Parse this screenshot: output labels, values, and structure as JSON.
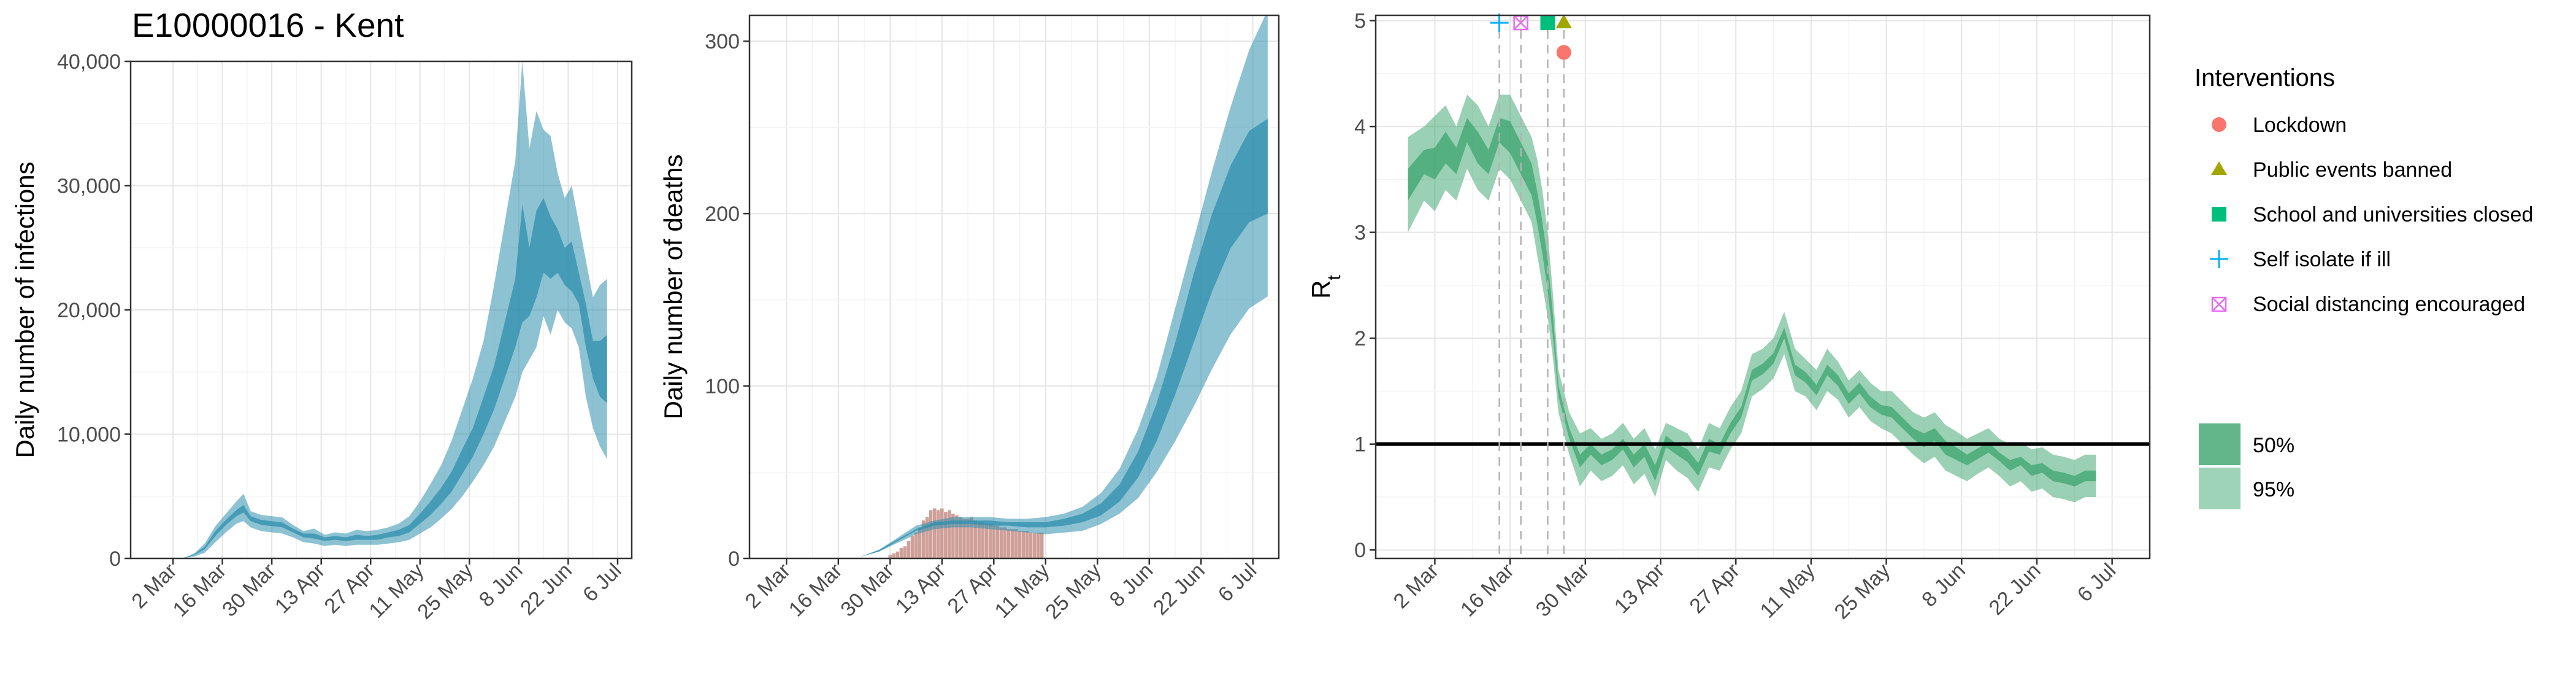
{
  "colors": {
    "infections": "#2f8fae",
    "deaths": "#2f8fae",
    "deaths_bars": "#c78f87",
    "rt": "#36a269",
    "lockdown": "#f8766d",
    "public_events": "#a3a500",
    "schools": "#00bf7d",
    "self_isolate": "#00b0f6",
    "social_distancing": "#e76bf3"
  },
  "figure": {
    "title": "E10000016 - Kent"
  },
  "chart_data": [
    {
      "id": "infections",
      "type": "area",
      "title": "E10000016 - Kent",
      "xlabel": "",
      "ylabel": "Daily number of infections",
      "x_ticks": [
        "2 Mar",
        "16 Mar",
        "30 Mar",
        "13 Apr",
        "27 Apr",
        "11 May",
        "25 May",
        "8 Jun",
        "22 Jun",
        "6 Jul"
      ],
      "x_tick_days": [
        0,
        14,
        28,
        42,
        56,
        70,
        84,
        98,
        112,
        126
      ],
      "x_range": [
        -12,
        130
      ],
      "y_ticks": [
        0,
        10000,
        20000,
        30000,
        40000
      ],
      "y_tick_labels": [
        "0",
        "10,000",
        "20,000",
        "30,000",
        "40,000"
      ],
      "ylim": [
        0,
        40000
      ],
      "grid": true,
      "x_days": [
        0,
        3,
        6,
        9,
        12,
        15,
        18,
        20,
        22,
        25,
        28,
        31,
        34,
        37,
        40,
        43,
        46,
        49,
        52,
        55,
        58,
        61,
        64,
        67,
        70,
        73,
        76,
        79,
        82,
        85,
        88,
        91,
        94,
        97,
        99,
        101,
        103,
        105,
        107,
        109,
        111,
        113,
        115,
        117,
        119,
        121,
        123
      ],
      "series": [
        {
          "name": "95% interval",
          "lower": [
            0,
            20,
            150,
            450,
            1300,
            2100,
            2800,
            3000,
            2500,
            2200,
            2100,
            2000,
            1700,
            1300,
            1200,
            1000,
            1100,
            1000,
            1100,
            1100,
            1100,
            1200,
            1300,
            1500,
            2000,
            2500,
            3200,
            4000,
            5000,
            6200,
            7500,
            9000,
            11000,
            13000,
            15000,
            16000,
            17000,
            19500,
            18000,
            20000,
            19000,
            18500,
            17000,
            13000,
            10500,
            9000,
            8000
          ],
          "upper": [
            0,
            50,
            400,
            1200,
            2600,
            3600,
            4600,
            5200,
            3800,
            3500,
            3400,
            3300,
            2700,
            2200,
            2400,
            1900,
            2100,
            2000,
            2300,
            2200,
            2300,
            2500,
            2800,
            3400,
            4600,
            6000,
            7500,
            9500,
            12000,
            14500,
            17500,
            22000,
            27000,
            32000,
            40000,
            33000,
            36000,
            34500,
            34000,
            31000,
            29000,
            30000,
            27000,
            24000,
            21000,
            22000,
            22500
          ]
        },
        {
          "name": "50% interval",
          "lower": [
            0,
            30,
            250,
            750,
            1800,
            2700,
            3400,
            3700,
            3000,
            2700,
            2600,
            2500,
            2100,
            1700,
            1600,
            1400,
            1500,
            1400,
            1500,
            1500,
            1500,
            1700,
            1800,
            2100,
            2800,
            3500,
            4400,
            5400,
            6800,
            8200,
            10000,
            12000,
            14500,
            17000,
            19000,
            19500,
            21000,
            23000,
            22500,
            23000,
            22000,
            21500,
            20500,
            17000,
            14500,
            13000,
            12500
          ],
          "upper": [
            0,
            40,
            320,
            950,
            2200,
            3100,
            3900,
            4300,
            3400,
            3100,
            3000,
            2900,
            2400,
            2000,
            2000,
            1700,
            1800,
            1700,
            1900,
            1800,
            1900,
            2100,
            2300,
            2700,
            3600,
            4600,
            5700,
            7000,
            8800,
            10500,
            13000,
            15500,
            19000,
            22500,
            28500,
            25000,
            28000,
            29000,
            27500,
            26500,
            25000,
            25500,
            23000,
            20500,
            17500,
            17500,
            18000
          ]
        }
      ]
    },
    {
      "id": "deaths",
      "type": "area",
      "title": "",
      "xlabel": "",
      "ylabel": "Daily number of deaths",
      "x_ticks": [
        "2 Mar",
        "16 Mar",
        "30 Mar",
        "13 Apr",
        "27 Apr",
        "11 May",
        "25 May",
        "8 Jun",
        "22 Jun",
        "6 Jul"
      ],
      "x_tick_days": [
        0,
        14,
        28,
        42,
        56,
        70,
        84,
        98,
        112,
        126
      ],
      "x_range": [
        -10,
        133
      ],
      "y_ticks": [
        0,
        100,
        200,
        300
      ],
      "y_tick_labels": [
        "0",
        "100",
        "200",
        "300"
      ],
      "ylim": [
        0,
        315
      ],
      "grid": true,
      "x_days": [
        14,
        20,
        25,
        30,
        35,
        40,
        45,
        50,
        55,
        60,
        65,
        70,
        75,
        80,
        85,
        90,
        95,
        100,
        105,
        110,
        115,
        120,
        125,
        130
      ],
      "series": [
        {
          "name": "95% interval",
          "lower": [
            0,
            1,
            4,
            9,
            14,
            17,
            18,
            18,
            17,
            16,
            15,
            14,
            15,
            16,
            20,
            26,
            35,
            50,
            68,
            88,
            110,
            130,
            145,
            152
          ],
          "upper": [
            0,
            1,
            5,
            12,
            19,
            22,
            24,
            24,
            24,
            23,
            23,
            24,
            26,
            30,
            38,
            52,
            75,
            105,
            145,
            185,
            225,
            262,
            295,
            318
          ]
        },
        {
          "name": "50% interval",
          "lower": [
            0,
            1,
            4,
            10,
            16,
            19,
            20,
            20,
            19,
            19,
            18,
            18,
            19,
            21,
            25,
            33,
            47,
            68,
            95,
            125,
            155,
            180,
            195,
            200
          ],
          "upper": [
            0,
            1,
            5,
            11,
            17,
            21,
            22,
            22,
            22,
            21,
            21,
            21,
            23,
            26,
            32,
            43,
            62,
            90,
            125,
            165,
            200,
            228,
            248,
            255
          ]
        }
      ],
      "observed_days": [
        28,
        29,
        30,
        31,
        32,
        33,
        34,
        35,
        36,
        37,
        38,
        39,
        40,
        41,
        42,
        43,
        44,
        45,
        46,
        47,
        48,
        49,
        50,
        51,
        52,
        53,
        54,
        55,
        56,
        57,
        58,
        59,
        60,
        61,
        62,
        63,
        64,
        65,
        66,
        67,
        68,
        69
      ],
      "observed_deaths": [
        2,
        3,
        4,
        6,
        7,
        10,
        13,
        15,
        18,
        22,
        24,
        28,
        29,
        28,
        29,
        27,
        28,
        26,
        25,
        24,
        23,
        23,
        24,
        22,
        21,
        21,
        20,
        20,
        19,
        19,
        18,
        18,
        17,
        17,
        17,
        16,
        16,
        16,
        15,
        15,
        15,
        15
      ]
    },
    {
      "id": "rt",
      "type": "area",
      "title": "",
      "xlabel": "",
      "ylabel": "R",
      "ylabel_subscript": "t",
      "x_ticks": [
        "2 Mar",
        "16 Mar",
        "30 Mar",
        "13 Apr",
        "27 Apr",
        "11 May",
        "25 May",
        "8 Jun",
        "22 Jun",
        "6 Jul"
      ],
      "x_tick_days": [
        0,
        14,
        28,
        42,
        56,
        70,
        84,
        98,
        112,
        126
      ],
      "x_range": [
        -11,
        133
      ],
      "y_ticks": [
        0,
        1,
        2,
        3,
        4,
        5
      ],
      "y_tick_labels": [
        "0",
        "1",
        "2",
        "3",
        "4",
        "5"
      ],
      "ylim": [
        -0.08,
        5.05
      ],
      "grid": true,
      "reference_line": 1,
      "x_days": [
        -5,
        -2,
        0,
        2,
        4,
        6,
        8,
        10,
        12,
        14,
        16,
        18,
        19,
        20,
        21,
        22,
        23,
        25,
        27,
        29,
        31,
        33,
        35,
        37,
        39,
        41,
        43,
        45,
        47,
        49,
        51,
        53,
        55,
        57,
        59,
        61,
        63,
        65,
        67,
        69,
        71,
        73,
        75,
        77,
        79,
        81,
        83,
        85,
        87,
        89,
        91,
        93,
        95,
        97,
        99,
        101,
        103,
        105,
        107,
        109,
        111,
        113,
        115,
        117,
        119,
        121,
        123
      ],
      "series": [
        {
          "name": "95%",
          "lower": [
            3.0,
            3.3,
            3.2,
            3.4,
            3.3,
            3.6,
            3.4,
            3.3,
            3.6,
            3.5,
            3.3,
            3.1,
            2.8,
            2.5,
            2.2,
            1.8,
            1.3,
            0.9,
            0.6,
            0.75,
            0.65,
            0.7,
            0.8,
            0.62,
            0.72,
            0.5,
            0.85,
            0.75,
            0.68,
            0.55,
            0.78,
            0.75,
            0.95,
            1.1,
            1.45,
            1.52,
            1.62,
            1.85,
            1.5,
            1.45,
            1.32,
            1.5,
            1.42,
            1.25,
            1.35,
            1.22,
            1.15,
            1.1,
            1.0,
            0.9,
            0.82,
            0.88,
            0.75,
            0.7,
            0.65,
            0.72,
            0.78,
            0.7,
            0.6,
            0.65,
            0.55,
            0.58,
            0.5,
            0.48,
            0.45,
            0.5,
            0.5
          ],
          "upper": [
            3.9,
            4.0,
            4.1,
            4.2,
            4.0,
            4.3,
            4.2,
            4.0,
            4.3,
            4.3,
            4.1,
            3.9,
            3.7,
            3.4,
            3.0,
            2.4,
            1.7,
            1.3,
            1.1,
            1.15,
            1.05,
            1.1,
            1.2,
            1.05,
            1.15,
            0.95,
            1.2,
            1.15,
            1.1,
            0.95,
            1.2,
            1.15,
            1.35,
            1.5,
            1.85,
            1.9,
            2.0,
            2.25,
            1.9,
            1.8,
            1.7,
            1.9,
            1.78,
            1.6,
            1.7,
            1.58,
            1.5,
            1.5,
            1.4,
            1.3,
            1.25,
            1.3,
            1.18,
            1.12,
            1.05,
            1.1,
            1.15,
            1.05,
            1.0,
            1.02,
            0.95,
            0.97,
            0.9,
            0.88,
            0.85,
            0.9,
            0.9
          ]
        },
        {
          "name": "50%",
          "lower": [
            3.3,
            3.55,
            3.5,
            3.65,
            3.55,
            3.85,
            3.65,
            3.55,
            3.85,
            3.75,
            3.55,
            3.35,
            3.1,
            2.8,
            2.45,
            2.0,
            1.45,
            1.05,
            0.78,
            0.9,
            0.8,
            0.85,
            0.95,
            0.78,
            0.88,
            0.65,
            0.97,
            0.9,
            0.83,
            0.7,
            0.93,
            0.9,
            1.1,
            1.25,
            1.6,
            1.66,
            1.76,
            2.0,
            1.65,
            1.58,
            1.46,
            1.65,
            1.55,
            1.38,
            1.48,
            1.35,
            1.28,
            1.25,
            1.15,
            1.05,
            0.97,
            1.03,
            0.9,
            0.85,
            0.8,
            0.86,
            0.92,
            0.84,
            0.75,
            0.8,
            0.7,
            0.73,
            0.65,
            0.63,
            0.6,
            0.65,
            0.65
          ],
          "upper": [
            3.6,
            3.78,
            3.8,
            3.95,
            3.8,
            4.08,
            3.95,
            3.78,
            4.08,
            4.05,
            3.85,
            3.65,
            3.4,
            3.1,
            2.75,
            2.2,
            1.55,
            1.15,
            0.9,
            1.0,
            0.9,
            0.95,
            1.05,
            0.9,
            1.0,
            0.8,
            1.08,
            1.0,
            0.95,
            0.82,
            1.05,
            1.0,
            1.2,
            1.35,
            1.7,
            1.76,
            1.86,
            2.1,
            1.75,
            1.68,
            1.56,
            1.75,
            1.65,
            1.48,
            1.58,
            1.45,
            1.37,
            1.35,
            1.25,
            1.15,
            1.1,
            1.15,
            1.03,
            0.97,
            0.9,
            0.96,
            1.02,
            0.92,
            0.85,
            0.88,
            0.8,
            0.82,
            0.75,
            0.73,
            0.7,
            0.75,
            0.75
          ]
        }
      ],
      "interventions": [
        {
          "name": "Self isolate if ill",
          "day": 12,
          "symbol": "plus"
        },
        {
          "name": "Social distancing encouraged",
          "day": 16,
          "symbol": "boxx"
        },
        {
          "name": "School and universities closed",
          "day": 21,
          "symbol": "square"
        },
        {
          "name": "Public events banned",
          "day": 24,
          "symbol": "triangle"
        },
        {
          "name": "Lockdown",
          "day": 24,
          "symbol": "circle"
        }
      ]
    }
  ],
  "legend": {
    "title": "Interventions",
    "items": [
      {
        "label": "Lockdown",
        "symbol": "circle"
      },
      {
        "label": "Public events banned",
        "symbol": "triangle"
      },
      {
        "label": "School and universities closed",
        "symbol": "square"
      },
      {
        "label": "Self isolate if ill",
        "symbol": "plus"
      },
      {
        "label": "Social distancing encouraged",
        "symbol": "boxx"
      }
    ],
    "band_items": [
      {
        "label": "50%"
      },
      {
        "label": "95%"
      }
    ]
  }
}
